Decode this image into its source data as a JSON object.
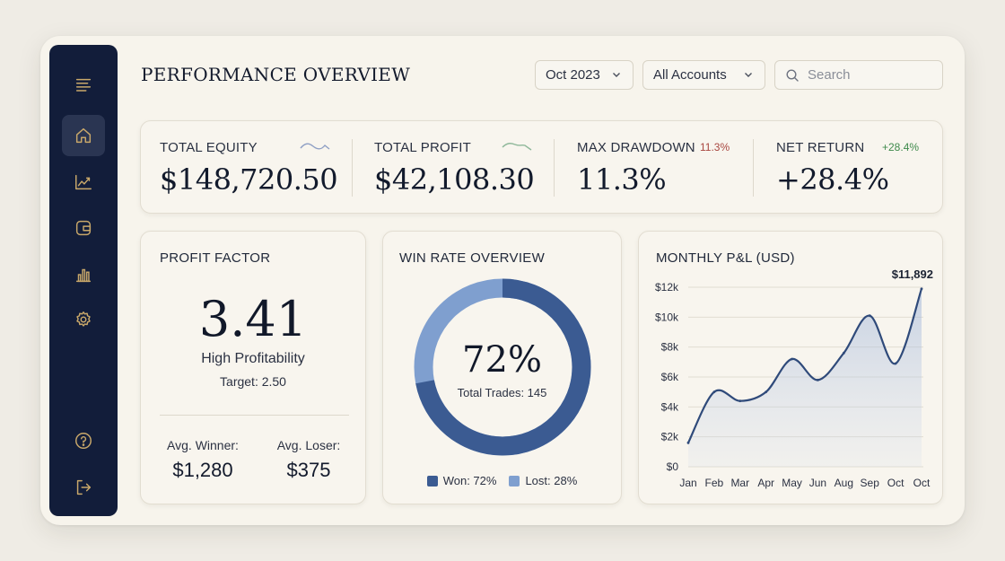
{
  "header": {
    "title": "PERFORMANCE OVERVIEW",
    "period": "Oct 2023",
    "accounts": "All Accounts",
    "search_placeholder": "Search"
  },
  "sidebar": {
    "items": [
      {
        "icon": "menu-icon"
      },
      {
        "icon": "home-icon",
        "active": true
      },
      {
        "icon": "trend-icon"
      },
      {
        "icon": "wallet-icon"
      },
      {
        "icon": "bar-chart-icon"
      },
      {
        "icon": "settings-icon"
      },
      {
        "icon": "help-icon"
      },
      {
        "icon": "logout-icon"
      }
    ]
  },
  "stats": {
    "total_equity": {
      "label": "TOTAL EQUITY",
      "value": "$148,720.50"
    },
    "total_profit": {
      "label": "TOTAL PROFIT",
      "value": "$42,108.30"
    },
    "max_drawdown": {
      "label": "MAX DRAWDOWN",
      "value": "11.3%",
      "chip": "11.3%"
    },
    "net_return": {
      "label": "NET RETURN",
      "value": "+28.4%",
      "chip": "+28.4%"
    }
  },
  "profit_factor": {
    "title": "PROFIT FACTOR",
    "value": "3.41",
    "rating": "High Profitability",
    "target": "Target: 2.50",
    "avg_winner_label": "Avg. Winner:",
    "avg_winner": "$1,280",
    "avg_loser_label": "Avg. Loser:",
    "avg_loser": "$375"
  },
  "win_rate": {
    "title": "WIN RATE OVERVIEW",
    "value": "72%",
    "won_fraction": 0.72,
    "total_trades": "Total Trades: 145",
    "legend_won": "Won: 72%",
    "legend_lost": "Lost: 28%"
  },
  "monthly_pnl": {
    "title": "MONTHLY P&L (USD)"
  },
  "chart_data": {
    "type": "area",
    "title": "MONTHLY P&L (USD)",
    "categories": [
      "Jan",
      "Feb",
      "Mar",
      "Apr",
      "May",
      "Jun",
      "Aug",
      "Sep",
      "Oct",
      "Oct"
    ],
    "values": [
      1600,
      5000,
      4400,
      5000,
      7200,
      5800,
      7600,
      10100,
      6900,
      11892
    ],
    "ylim": [
      0,
      12000
    ],
    "yticks": [
      "$0",
      "$2k",
      "$4k",
      "$6k",
      "$8k",
      "$10k",
      "$12k"
    ],
    "ytick_values": [
      0,
      2000,
      4000,
      6000,
      8000,
      10000,
      12000
    ],
    "annotation": "$11,892",
    "grid": true
  },
  "colors": {
    "navy": "#121d3a",
    "accent_blue": "#3b5b92",
    "light_blue": "#7f9fcf",
    "negative": "#a8463f",
    "positive": "#3f8a4c"
  }
}
